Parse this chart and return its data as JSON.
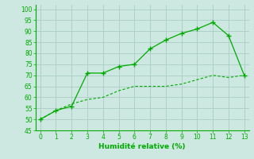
{
  "x": [
    0,
    1,
    2,
    3,
    4,
    5,
    6,
    7,
    8,
    9,
    10,
    11,
    12,
    13
  ],
  "upper_y": [
    50,
    54,
    56,
    71,
    71,
    74,
    75,
    82,
    86,
    89,
    91,
    94,
    88,
    70
  ],
  "lower_y": [
    50,
    54,
    57,
    59,
    60,
    63,
    65,
    65,
    65,
    66,
    68,
    70,
    69,
    70
  ],
  "line_color": "#00aa00",
  "bg_color": "#cce8e0",
  "grid_color": "#aaccc4",
  "xlabel": "Humidité relative (%)",
  "xlim": [
    -0.3,
    13.3
  ],
  "ylim": [
    45,
    102
  ],
  "yticks": [
    45,
    50,
    55,
    60,
    65,
    70,
    75,
    80,
    85,
    90,
    95,
    100
  ],
  "xticks": [
    0,
    1,
    2,
    3,
    4,
    5,
    6,
    7,
    8,
    9,
    10,
    11,
    12,
    13
  ]
}
